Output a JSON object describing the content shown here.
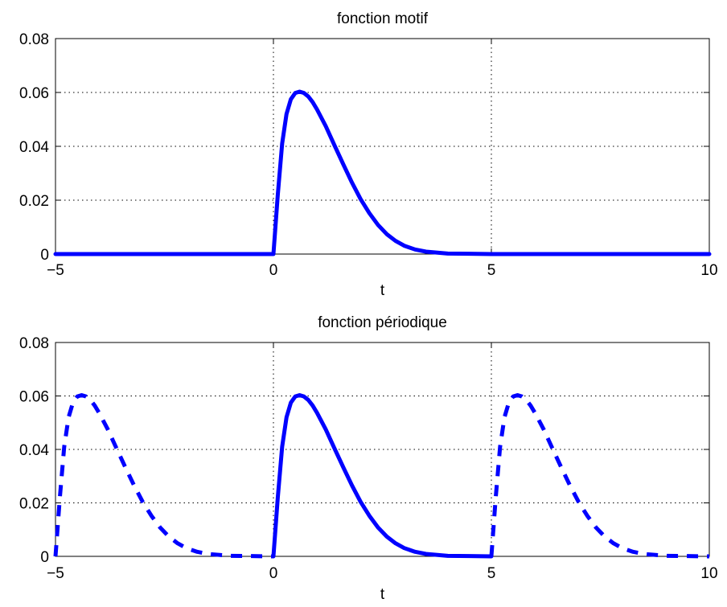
{
  "chart_data": [
    {
      "type": "line",
      "title": "fonction motif",
      "xlabel": "t",
      "ylabel": "",
      "xlim": [
        -5,
        10
      ],
      "ylim": [
        0,
        0.08
      ],
      "xticks": [
        "−5",
        "0",
        "5",
        "10"
      ],
      "xtick_values": [
        -5,
        0,
        5,
        10
      ],
      "yticks": [
        "0",
        "0.02",
        "0.04",
        "0.06",
        "0.08"
      ],
      "ytick_values": [
        0,
        0.02,
        0.04,
        0.06,
        0.08
      ],
      "grid": true,
      "series": [
        {
          "color": "#0000ff",
          "style": "solid",
          "x": [
            -5,
            -4,
            -3,
            -2,
            -1,
            0,
            0.1,
            0.2,
            0.3,
            0.4,
            0.5,
            0.6,
            0.7,
            0.8,
            0.9,
            1.0,
            1.2,
            1.4,
            1.6,
            1.8,
            2.0,
            2.2,
            2.4,
            2.6,
            2.8,
            3.0,
            3.25,
            3.5,
            4,
            4.5,
            5,
            6,
            7,
            8,
            9,
            10
          ],
          "y": [
            0,
            0,
            0,
            0,
            0,
            0,
            0.022,
            0.041,
            0.052,
            0.0575,
            0.0598,
            0.0603,
            0.0598,
            0.0585,
            0.0564,
            0.0537,
            0.0475,
            0.0404,
            0.0334,
            0.0266,
            0.0204,
            0.0152,
            0.0108,
            0.0074,
            0.0049,
            0.0031,
            0.0017,
            0.0009,
            0.0002,
            0.0001,
            0,
            0,
            0,
            0,
            0,
            0
          ]
        }
      ]
    },
    {
      "type": "line",
      "title": "fonction périodique",
      "xlabel": "t",
      "ylabel": "",
      "xlim": [
        -5,
        10
      ],
      "ylim": [
        0,
        0.08
      ],
      "xticks": [
        "−5",
        "0",
        "5",
        "10"
      ],
      "xtick_values": [
        -5,
        0,
        5,
        10
      ],
      "yticks": [
        "0",
        "0.02",
        "0.04",
        "0.06",
        "0.08"
      ],
      "ytick_values": [
        0,
        0.02,
        0.04,
        0.06,
        0.08
      ],
      "grid": true,
      "series": [
        {
          "color": "#0000ff",
          "style": "dashed",
          "x": [
            -5,
            -4.9,
            -4.8,
            -4.7,
            -4.6,
            -4.5,
            -4.4,
            -4.3,
            -4.2,
            -4.1,
            -4.0,
            -3.8,
            -3.6,
            -3.4,
            -3.2,
            -3.0,
            -2.8,
            -2.6,
            -2.4,
            -2.2,
            -2.0,
            -1.75,
            -1.5,
            -1,
            -0.5,
            0
          ],
          "y": [
            0,
            0.022,
            0.041,
            0.052,
            0.0575,
            0.0598,
            0.0603,
            0.0598,
            0.0585,
            0.0564,
            0.0537,
            0.0475,
            0.0404,
            0.0334,
            0.0266,
            0.0204,
            0.0152,
            0.0108,
            0.0074,
            0.0049,
            0.0031,
            0.0017,
            0.0009,
            0.0002,
            0.0001,
            0
          ]
        },
        {
          "color": "#0000ff",
          "style": "solid",
          "x": [
            0,
            0.1,
            0.2,
            0.3,
            0.4,
            0.5,
            0.6,
            0.7,
            0.8,
            0.9,
            1.0,
            1.2,
            1.4,
            1.6,
            1.8,
            2.0,
            2.2,
            2.4,
            2.6,
            2.8,
            3.0,
            3.25,
            3.5,
            4,
            4.5,
            5
          ],
          "y": [
            0,
            0.022,
            0.041,
            0.052,
            0.0575,
            0.0598,
            0.0603,
            0.0598,
            0.0585,
            0.0564,
            0.0537,
            0.0475,
            0.0404,
            0.0334,
            0.0266,
            0.0204,
            0.0152,
            0.0108,
            0.0074,
            0.0049,
            0.0031,
            0.0017,
            0.0009,
            0.0002,
            0.0001,
            0
          ]
        },
        {
          "color": "#0000ff",
          "style": "dashed",
          "x": [
            5,
            5.1,
            5.2,
            5.3,
            5.4,
            5.5,
            5.6,
            5.7,
            5.8,
            5.9,
            6.0,
            6.2,
            6.4,
            6.6,
            6.8,
            7.0,
            7.2,
            7.4,
            7.6,
            7.8,
            8.0,
            8.25,
            8.5,
            9,
            9.5,
            10
          ],
          "y": [
            0,
            0.022,
            0.041,
            0.052,
            0.0575,
            0.0598,
            0.0603,
            0.0598,
            0.0585,
            0.0564,
            0.0537,
            0.0475,
            0.0404,
            0.0334,
            0.0266,
            0.0204,
            0.0152,
            0.0108,
            0.0074,
            0.0049,
            0.0031,
            0.0017,
            0.0009,
            0.0002,
            0.0001,
            0
          ]
        }
      ]
    }
  ]
}
